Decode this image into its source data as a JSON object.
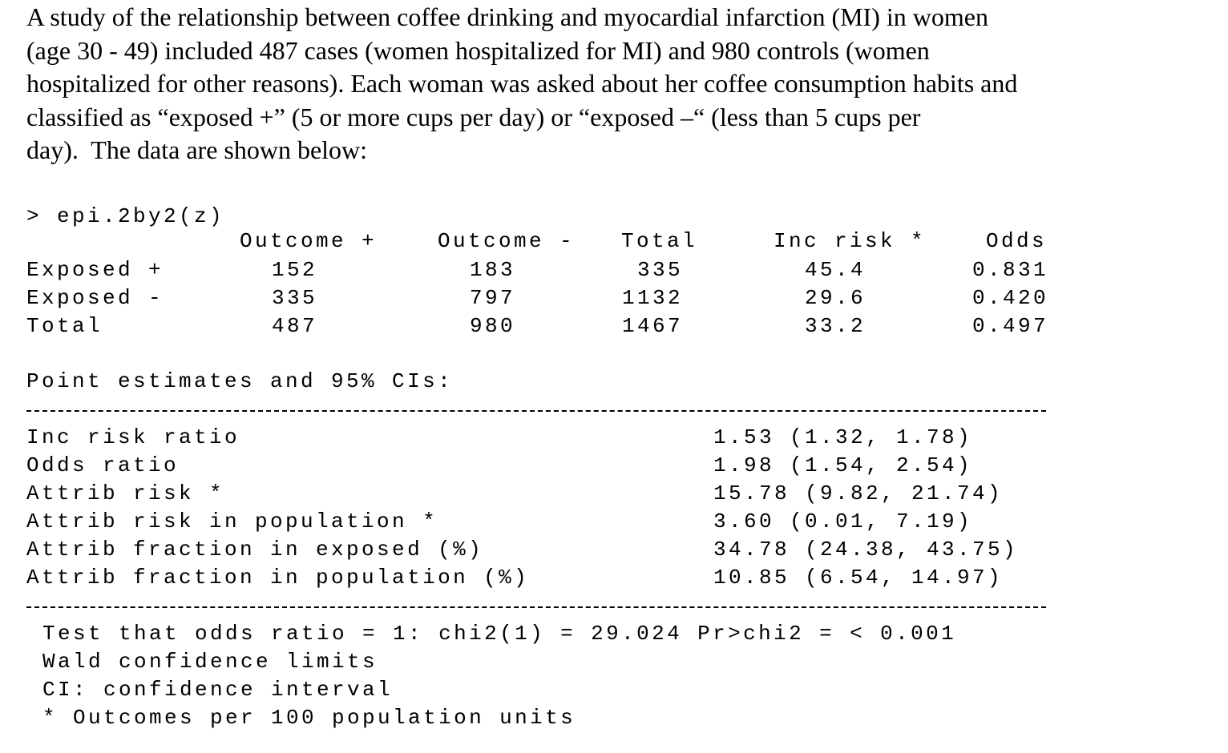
{
  "intro": {
    "lines": [
      "A study of the relationship between coffee drinking and myocardial infarction (MI) in women",
      "(age 30 - 49) included 487 cases (women hospitalized for MI) and 980 controls (women",
      "hospitalized for other reasons). Each woman was asked about her coffee consumption habits and",
      "classified as “exposed +” (5 or more cups per day) or “exposed –“ (less than 5 cups per",
      "day).  The data are shown below:"
    ]
  },
  "console": {
    "command": "> epi.2by2(z)",
    "table": {
      "header": [
        "Outcome +",
        "Outcome -",
        "Total",
        "Inc risk *",
        "Odds"
      ],
      "rows": [
        {
          "label": "Exposed +",
          "cells": [
            "152",
            "183",
            "335",
            "45.4",
            "0.831"
          ]
        },
        {
          "label": "Exposed -",
          "cells": [
            "335",
            "797",
            "1132",
            "29.6",
            "0.420"
          ]
        },
        {
          "label": "Total",
          "cells": [
            "487",
            "980",
            "1467",
            "33.2",
            "0.497"
          ]
        }
      ]
    },
    "estimates_title": "Point estimates and 95% CIs:",
    "estimates": [
      {
        "label": "Inc risk ratio",
        "value": "1.53 (1.32, 1.78)"
      },
      {
        "label": "Odds ratio",
        "value": "1.98 (1.54, 2.54)"
      },
      {
        "label": "Attrib risk *",
        "value": "15.78 (9.82, 21.74)"
      },
      {
        "label": "Attrib risk in population *",
        "value": "3.60 (0.01, 7.19)"
      },
      {
        "label": "Attrib fraction in exposed (%)",
        "value": "34.78 (24.38, 43.75)"
      },
      {
        "label": "Attrib fraction in population (%)",
        "value": "10.85 (6.54, 14.97)"
      }
    ],
    "footer": [
      "Test that odds ratio = 1: chi2(1) = 29.024 Pr>chi2 = < 0.001",
      "Wald confidence limits",
      "CI: confidence interval",
      "* Outcomes per 100 population units"
    ]
  }
}
